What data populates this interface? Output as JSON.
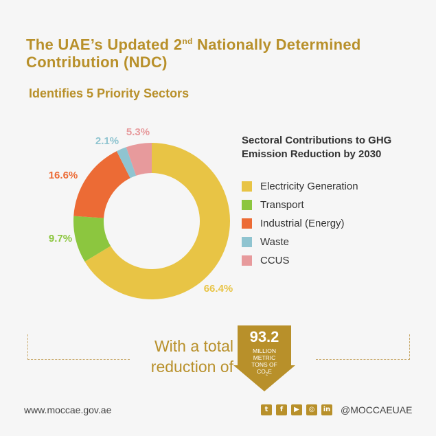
{
  "title_main": "The UAE’s Updated 2",
  "title_sup": "nd",
  "title_rest": " Nationally Determined Contribution (NDC)",
  "subtitle": "Identifies 5 Priority Sectors",
  "legend_title": "Sectoral Contributions to GHG Emission Reduction by 2030",
  "chart_data": {
    "type": "pie",
    "categories": [
      "Electricity Generation",
      "Transport",
      "Industrial (Energy)",
      "Waste",
      "CCUS"
    ],
    "values": [
      66.4,
      9.7,
      16.6,
      2.1,
      5.3
    ],
    "labels": [
      "66.4%",
      "9.7%",
      "16.6%",
      "2.1%",
      "5.3%"
    ],
    "colors": [
      "#e8c445",
      "#8cc63f",
      "#ec6b35",
      "#8fc4d0",
      "#e79a9c"
    ],
    "title": "Sectoral Contributions to GHG Emission Reduction by 2030",
    "legend_position": "right",
    "style": "donut"
  },
  "total": {
    "lead_text": "With a total reduction of",
    "value": "93.2",
    "unit_line1": "MILLION",
    "unit_line2": "METRIC",
    "unit_line3": "TONS OF",
    "unit_co2_base": "CO",
    "unit_co2_sub": "2",
    "unit_co2_end": "E",
    "accent": "#b8902a"
  },
  "footer": {
    "website": "www.moccae.gov.ae",
    "handle": "@MOCCAEUAE",
    "social_icons": [
      "twitter-icon",
      "facebook-icon",
      "youtube-icon",
      "instagram-icon",
      "linkedin-icon"
    ]
  }
}
